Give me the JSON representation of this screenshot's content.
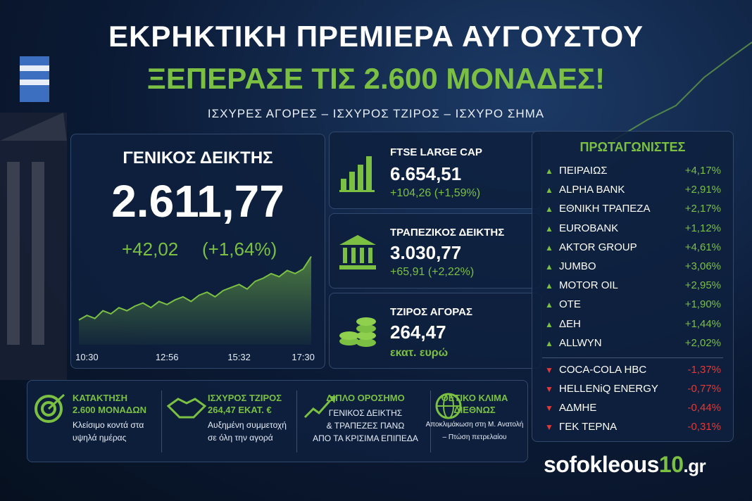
{
  "header": {
    "title": "ΕΚΡΗΚΤΙΚΗ ΠΡΕΜΙΕΡΑ ΑΥΓΟΥΣΤΟΥ",
    "headline": "ΞΕΠΕΡΑΣΕ ΤΙΣ 2.600 ΜΟΝΑΔΕΣ!",
    "subtitle": "ΙΣΧΥΡΕΣ ΑΓΟΡΕΣ – ΙΣΧΥΡΟΣ ΤΖΙΡΟΣ – ΙΣΧΥΡΟ ΣΗΜΑ"
  },
  "main_index": {
    "label": "ΓΕΝΙΚΟΣ ΔΕΙΚΤΗΣ",
    "value": "2.611,77",
    "change": "+42,02",
    "change_pct": "(+1,64%)"
  },
  "chart_data": {
    "type": "area",
    "color": "#7bc043",
    "categories": [
      null,
      "10:30",
      null,
      null,
      null,
      null,
      null,
      null,
      null,
      null,
      null,
      "12:56",
      null,
      null,
      null,
      null,
      null,
      null,
      null,
      null,
      "15:32",
      null,
      null,
      null,
      null,
      null,
      null,
      null,
      "17:30",
      null
    ],
    "values": [
      2571,
      2574,
      2572,
      2577,
      2575,
      2579,
      2577,
      2580,
      2582,
      2579,
      2583,
      2581,
      2584,
      2586,
      2583,
      2587,
      2589,
      2586,
      2590,
      2592,
      2594,
      2591,
      2596,
      2598,
      2601,
      2599,
      2603,
      2601,
      2604,
      2612
    ],
    "ylim": [
      2555,
      2615
    ]
  },
  "cards": [
    {
      "label": "FTSE LARGE CAP",
      "value": "6.654,51",
      "change": "+104,26  (+1,59%)"
    },
    {
      "label": "ΤΡΑΠΕΖΙΚΟΣ ΔΕΙΚΤΗΣ",
      "value": "3.030,77",
      "change": "+65,91  (+2,22%)"
    },
    {
      "label": "ΤΖΙΡΟΣ ΑΓΟΡΑΣ",
      "value": "264,47",
      "change": "εκατ. ευρώ"
    }
  ],
  "leaders": {
    "title": "ΠΡΩΤΑΓΩΝΙΣΤΕΣ",
    "gainers": [
      [
        "ΠΕΙΡΑΙΩΣ",
        "+4,17%"
      ],
      [
        "ALPHA BANK",
        "+2,91%"
      ],
      [
        "ΕΘΝΙΚΗ ΤΡΑΠΕΖΑ",
        "+2,17%"
      ],
      [
        "EUROBANK",
        "+1,12%"
      ],
      [
        "AKTOR GROUP",
        "+4,61%"
      ],
      [
        "JUMBO",
        "+3,06%"
      ],
      [
        "MOTOR OIL",
        "+2,95%"
      ],
      [
        "ΟΤΕ",
        "+1,90%"
      ],
      [
        "ΔΕΗ",
        "+1,44%"
      ],
      [
        "ALLWYN",
        "+2,02%"
      ]
    ],
    "losers": [
      [
        "COCA-COLA HBC",
        "-1,37%"
      ],
      [
        "HELLENiQ ENERGY",
        "-0,77%"
      ],
      [
        "ΑΔΜΗΕ",
        "-0,44%"
      ],
      [
        "ΓΕΚ ΤΕΡΝΑ",
        "-0,31%"
      ]
    ]
  },
  "highlights": [
    {
      "title": [
        "ΚΑΤΑΚΤΗΣΗ",
        "2.600 ΜΟΝΑΔΩΝ"
      ],
      "text": [
        "Κλείσιμο κοντά στα",
        "υψηλά ημέρας"
      ]
    },
    {
      "title": [
        "ΙΣΧΥΡΟΣ ΤΖΙΡΟΣ",
        "264,47 ΕΚΑΤ. €"
      ],
      "text": [
        "Αυξημένη συμμετοχή",
        "σε όλη την αγορά"
      ]
    },
    {
      "title": [
        "ΔΙΠΛΟ ΟΡΟΣΗΜΟ"
      ],
      "text": [
        "ΓΕΝΙΚΟΣ ΔΕΙΚΤΗΣ",
        "& ΤΡΑΠΕΖΕΣ ΠΑΝΩ",
        "ΑΠΟ ΤΑ ΚΡΙΣΙΜΑ ΕΠΙΠΕΔΑ"
      ]
    },
    {
      "title": [
        "ΘΕΤΙΚΟ ΚΛΙΜΑ",
        "ΔΙΕΘΝΩΣ"
      ],
      "text": [
        "Αποκλιμάκωση στη Μ. Ανατολή",
        "– Πτώση πετρελαίου"
      ]
    }
  ],
  "brand": {
    "name": "sofokleous",
    "number": "10",
    "domain": ".gr"
  }
}
